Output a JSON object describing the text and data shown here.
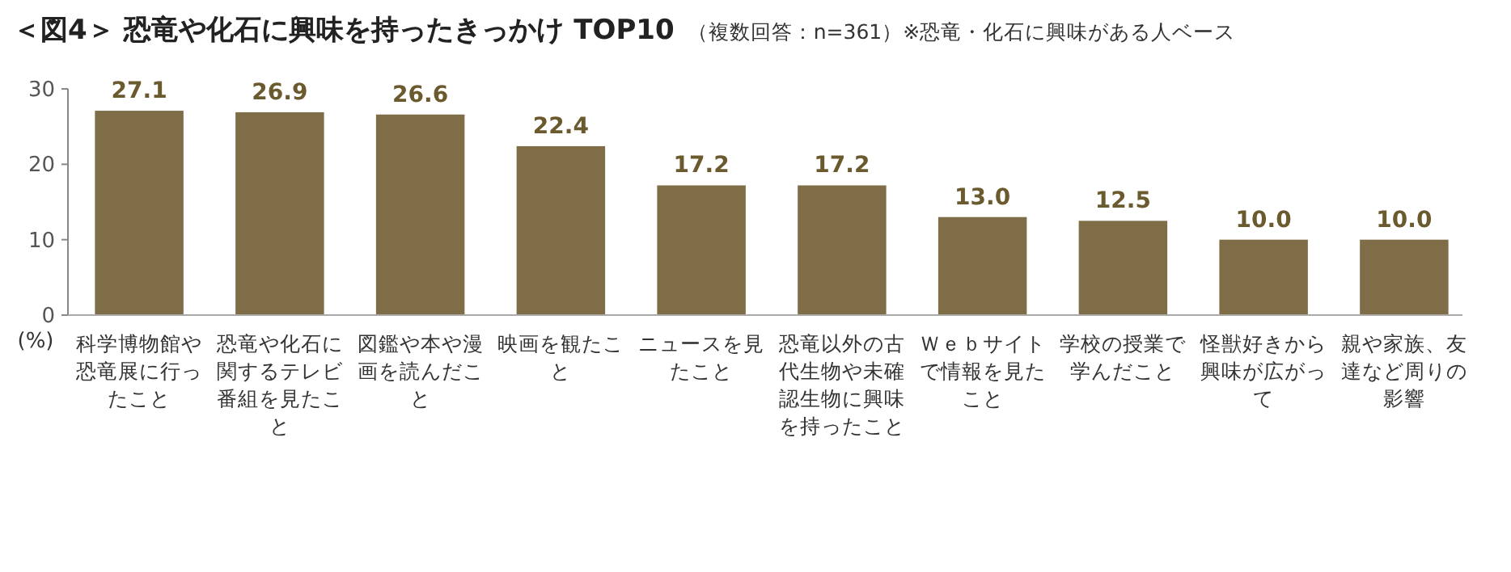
{
  "chart_data": {
    "type": "bar",
    "title": "＜図4＞ 恐竜や化石に興味を持ったきっかけ TOP10",
    "subtitle": "（複数回答：n=361）※恐竜・化石に興味がある人ベース",
    "ylabel": "(%)",
    "categories": [
      "科学博物館や恐竜展に行ったこと",
      "恐竜や化石に関するテレビ番組を見たこと",
      "図鑑や本や漫画を読んだこと",
      "映画を観たこと",
      "ニュースを見たこと",
      "恐竜以外の古代生物や未確認生物に興味を持ったこと",
      "Ｗｅｂサイトで情報を見たこと",
      "学校の授業で学んだこと",
      "怪獣好きから興味が広がって",
      "親や家族、友達など周りの影響"
    ],
    "values": [
      27.1,
      26.9,
      26.6,
      22.4,
      17.2,
      17.2,
      13.0,
      12.5,
      10.0,
      10.0
    ],
    "value_labels": [
      "27.1",
      "26.9",
      "26.6",
      "22.4",
      "17.2",
      "17.2",
      "13.0",
      "12.5",
      "10.0",
      "10.0"
    ],
    "color": "#7f6d47",
    "ylim": [
      0,
      30
    ],
    "yticks": [
      0,
      10,
      20,
      30
    ]
  }
}
